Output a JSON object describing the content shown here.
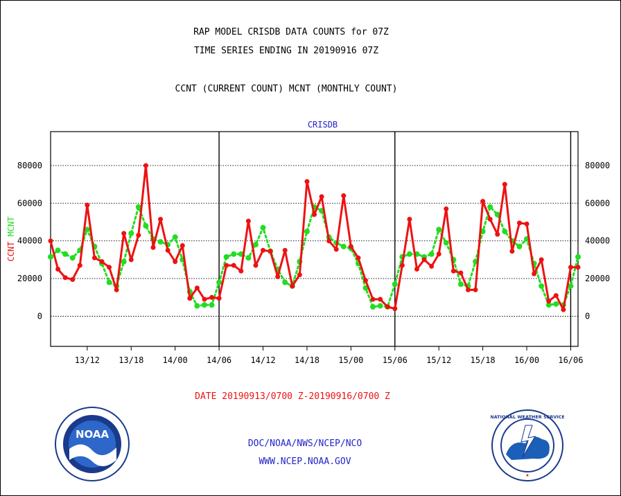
{
  "header": {
    "title_line1": "RAP MODEL CRISDB DATA COUNTS for 07Z",
    "title_line2": "TIME SERIES ENDING IN 20190916 07Z",
    "subtitle": "CCNT (CURRENT COUNT) MCNT (MONTHLY COUNT)"
  },
  "footer": {
    "date_range": "DATE 20190913/0700 Z-20190916/0700 Z",
    "org_line": "DOC/NOAA/NWS/NCEP/NCO",
    "url_line": "WWW.NCEP.NOAA.GOV",
    "noaa_logo_text": "NOAA",
    "nws_logo_text": "NATIONAL WEATHER SERVICE"
  },
  "colors": {
    "ccnt": "#ee1111",
    "mcnt": "#22dd22",
    "title": "#000000",
    "link_blue": "#2222cc",
    "date_red": "#ee1111"
  },
  "chart_data": {
    "type": "line",
    "title": "CRISDB",
    "ylabel_left_parts": [
      "CCNT",
      "MCNT"
    ],
    "ylim": [
      -16000,
      98000
    ],
    "yticks": [
      0,
      20000,
      40000,
      60000,
      80000
    ],
    "x_unit": "hours from 20190913/0700Z",
    "xlim": [
      0,
      72
    ],
    "xticks": [
      {
        "x": 5,
        "label": "13/12"
      },
      {
        "x": 11,
        "label": "13/18"
      },
      {
        "x": 17,
        "label": "14/00"
      },
      {
        "x": 23,
        "label": "14/06"
      },
      {
        "x": 29,
        "label": "14/12"
      },
      {
        "x": 35,
        "label": "14/18"
      },
      {
        "x": 41,
        "label": "15/00"
      },
      {
        "x": 47,
        "label": "15/06"
      },
      {
        "x": 53,
        "label": "15/12"
      },
      {
        "x": 59,
        "label": "15/18"
      },
      {
        "x": 65,
        "label": "16/00"
      },
      {
        "x": 71,
        "label": "16/06"
      }
    ],
    "day_dividers": [
      23,
      47,
      71
    ],
    "grid": "horizontal dotted",
    "series": [
      {
        "name": "CCNT",
        "style": "solid",
        "values": [
          40000,
          25000,
          20500,
          19500,
          27000,
          59000,
          31000,
          29000,
          26000,
          14000,
          44000,
          30000,
          43000,
          80000,
          36500,
          51500,
          35000,
          29000,
          37500,
          9500,
          15000,
          9000,
          10000,
          9500,
          27000,
          27000,
          24000,
          50500,
          27000,
          35000,
          34500,
          21000,
          35000,
          16000,
          22000,
          71500,
          54000,
          63500,
          40000,
          35500,
          64000,
          37000,
          31000,
          19000,
          9000,
          9000,
          5000,
          4000,
          27000,
          51500,
          25000,
          30000,
          26500,
          33000,
          57000,
          24000,
          23000,
          14000,
          14000,
          61000,
          51500,
          43500,
          70000,
          34500,
          49500,
          49000,
          22500,
          30000,
          8000,
          11000,
          3500,
          26000,
          26000
        ]
      },
      {
        "name": "MCNT",
        "style": "dotted",
        "values": [
          31500,
          35000,
          33000,
          31000,
          35000,
          46000,
          37000,
          28000,
          18000,
          16000,
          29000,
          44000,
          58000,
          48000,
          41000,
          39500,
          38000,
          42000,
          30000,
          13000,
          5500,
          6000,
          6000,
          18000,
          31500,
          33000,
          33000,
          31000,
          38000,
          47000,
          34500,
          25000,
          18000,
          16000,
          29000,
          45000,
          58000,
          56000,
          42000,
          39000,
          37000,
          36000,
          28000,
          15000,
          5000,
          5500,
          5000,
          17000,
          31500,
          33000,
          33000,
          31500,
          33000,
          46000,
          39000,
          30000,
          17000,
          16000,
          29000,
          45000,
          58000,
          54000,
          45000,
          40000,
          37000,
          41000,
          28000,
          16000,
          6000,
          6500,
          6000,
          16000,
          31500
        ]
      }
    ]
  }
}
